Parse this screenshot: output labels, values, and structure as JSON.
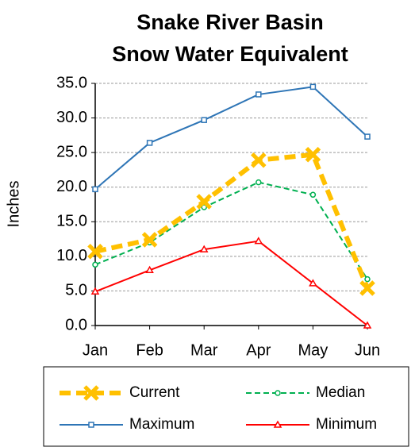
{
  "chart_data": {
    "type": "line",
    "title": "Snake River Basin",
    "subtitle": "Snow Water Equivalent",
    "y_label": "Inches",
    "categories": [
      "Jan",
      "Feb",
      "Mar",
      "Apr",
      "May",
      "Jun"
    ],
    "series": [
      {
        "name": "Current",
        "color": "#ffc000",
        "dash": true,
        "marker": "x",
        "values": [
          10.7,
          12.4,
          17.9,
          23.9,
          24.7,
          5.4
        ]
      },
      {
        "name": "Median",
        "color": "#00b050",
        "dash": true,
        "marker": "circle",
        "values": [
          8.8,
          12.0,
          17.1,
          20.7,
          18.9,
          6.7
        ]
      },
      {
        "name": "Maximum",
        "color": "#2e75b6",
        "dash": false,
        "marker": "square",
        "values": [
          19.7,
          26.4,
          29.7,
          33.4,
          34.5,
          27.3
        ]
      },
      {
        "name": "Minimum",
        "color": "#ff0000",
        "dash": false,
        "marker": "triangle",
        "values": [
          4.9,
          8.0,
          11.0,
          12.2,
          6.1,
          0
        ]
      }
    ],
    "ylim": [
      0,
      35
    ],
    "yticks": [
      {
        "value": 0,
        "label": "0.0"
      },
      {
        "value": 5,
        "label": "5.0"
      },
      {
        "value": 10,
        "label": "10.0"
      },
      {
        "value": 15,
        "label": "15.0"
      },
      {
        "value": 20,
        "label": "20.0"
      },
      {
        "value": 25,
        "label": "25.0"
      },
      {
        "value": 30,
        "label": "30.0"
      },
      {
        "value": 35,
        "label": "35.0"
      }
    ],
    "grid": true,
    "legend": "bottom"
  }
}
